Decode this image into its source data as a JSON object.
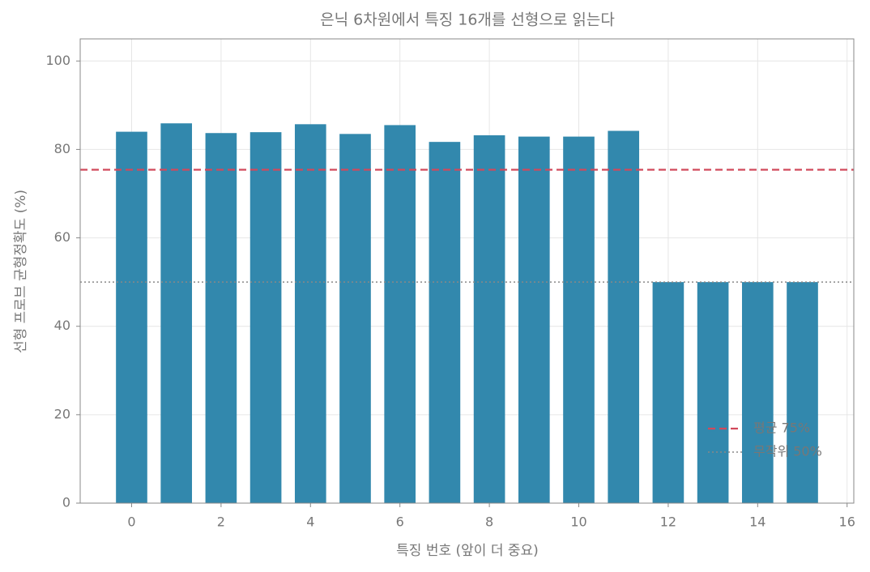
{
  "chart_data": {
    "type": "bar",
    "title": "은닉 6차원에서 특징 16개를 선형으로 읽는다",
    "x_label": "특징 번호 (앞이 더 중요)",
    "y_label": "선형 프로브 균형정확도 (%)",
    "x": [
      0,
      1,
      2,
      3,
      4,
      5,
      6,
      7,
      8,
      9,
      10,
      11,
      12,
      13,
      14,
      15
    ],
    "values": [
      84.0,
      85.9,
      83.7,
      83.9,
      85.7,
      83.5,
      85.5,
      81.7,
      83.2,
      82.9,
      82.9,
      84.2,
      50,
      50,
      50,
      50
    ],
    "color": "#2e86ab",
    "xlim": [
      -1.15,
      16.15
    ],
    "xticks": [
      0,
      2,
      4,
      6,
      8,
      10,
      12,
      14,
      16
    ],
    "ylim": [
      0,
      105
    ],
    "yticks": [
      0,
      20,
      40,
      60,
      80,
      100
    ],
    "grid": true,
    "reference_lines": [
      {
        "name": "평균 75%",
        "value": 75.4,
        "color": "#d1495b",
        "style": "dashed"
      },
      {
        "name": "무작위 50%",
        "value": 50,
        "color": "#888888",
        "style": "dotted"
      }
    ],
    "legend": "lower right"
  }
}
